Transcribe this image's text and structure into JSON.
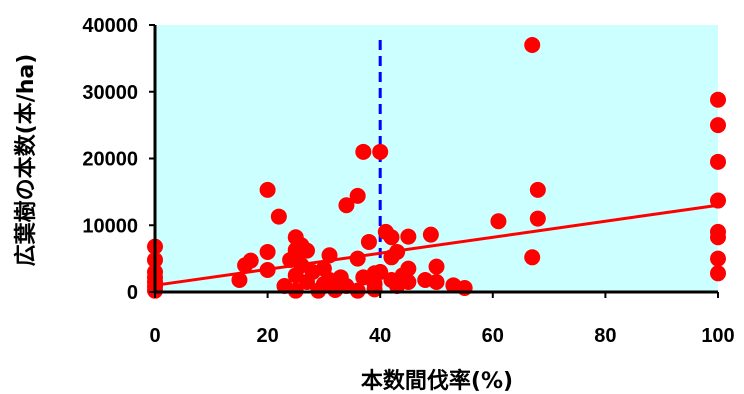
{
  "chart_data": {
    "type": "scatter",
    "xlabel": "本数間伐率(%)",
    "ylabel": "広葉樹の本数(本/ha)",
    "xlim": [
      0,
      100
    ],
    "ylim": [
      0,
      40000
    ],
    "x_ticks": [
      "0",
      "20",
      "40",
      "60",
      "80",
      "100"
    ],
    "y_ticks": [
      "0",
      "10000",
      "20000",
      "30000",
      "40000"
    ],
    "grid": false,
    "plot_background": "#ccffff",
    "point_color": "#ff0000",
    "reference_line": {
      "x": 40,
      "color": "#0000ff",
      "style": "dashed"
    },
    "trendline": {
      "x": [
        0,
        100
      ],
      "y": [
        1000,
        13000
      ],
      "color": "#ff0000"
    },
    "series": [
      {
        "points": [
          [
            0,
            6800
          ],
          [
            0,
            4800
          ],
          [
            0,
            3000
          ],
          [
            0,
            2200
          ],
          [
            0,
            1500
          ],
          [
            0,
            800
          ],
          [
            0,
            200
          ],
          [
            15,
            1800
          ],
          [
            16,
            4000
          ],
          [
            17,
            4700
          ],
          [
            20,
            15300
          ],
          [
            20,
            6000
          ],
          [
            20,
            3300
          ],
          [
            22,
            11300
          ],
          [
            23,
            900
          ],
          [
            24,
            4800
          ],
          [
            25,
            8200
          ],
          [
            25,
            6300
          ],
          [
            25,
            5500
          ],
          [
            25,
            2500
          ],
          [
            25,
            200
          ],
          [
            26,
            7000
          ],
          [
            26,
            4000
          ],
          [
            27,
            6200
          ],
          [
            27,
            1500
          ],
          [
            28,
            3000
          ],
          [
            29,
            200
          ],
          [
            30,
            3500
          ],
          [
            30,
            1200
          ],
          [
            31,
            5500
          ],
          [
            31,
            1800
          ],
          [
            32,
            300
          ],
          [
            33,
            2200
          ],
          [
            34,
            13000
          ],
          [
            34,
            900
          ],
          [
            36,
            14400
          ],
          [
            36,
            5000
          ],
          [
            36,
            200
          ],
          [
            37,
            21000
          ],
          [
            37,
            2200
          ],
          [
            38,
            7500
          ],
          [
            39,
            2800
          ],
          [
            39,
            1200
          ],
          [
            39,
            400
          ],
          [
            40,
            21000
          ],
          [
            40,
            3000
          ],
          [
            41,
            9000
          ],
          [
            42,
            8200
          ],
          [
            42,
            5200
          ],
          [
            42,
            1800
          ],
          [
            43,
            6000
          ],
          [
            43,
            900
          ],
          [
            44,
            2500
          ],
          [
            45,
            8300
          ],
          [
            45,
            3500
          ],
          [
            45,
            1500
          ],
          [
            48,
            1800
          ],
          [
            49,
            8600
          ],
          [
            50,
            3800
          ],
          [
            50,
            1500
          ],
          [
            53,
            1000
          ],
          [
            55,
            600
          ],
          [
            61,
            10600
          ],
          [
            67,
            5200
          ],
          [
            67,
            37000
          ],
          [
            68,
            15300
          ],
          [
            68,
            11000
          ],
          [
            100,
            28800
          ],
          [
            100,
            25000
          ],
          [
            100,
            19500
          ],
          [
            100,
            13700
          ],
          [
            100,
            9000
          ],
          [
            100,
            8200
          ],
          [
            100,
            5000
          ],
          [
            100,
            2800
          ]
        ]
      }
    ]
  }
}
